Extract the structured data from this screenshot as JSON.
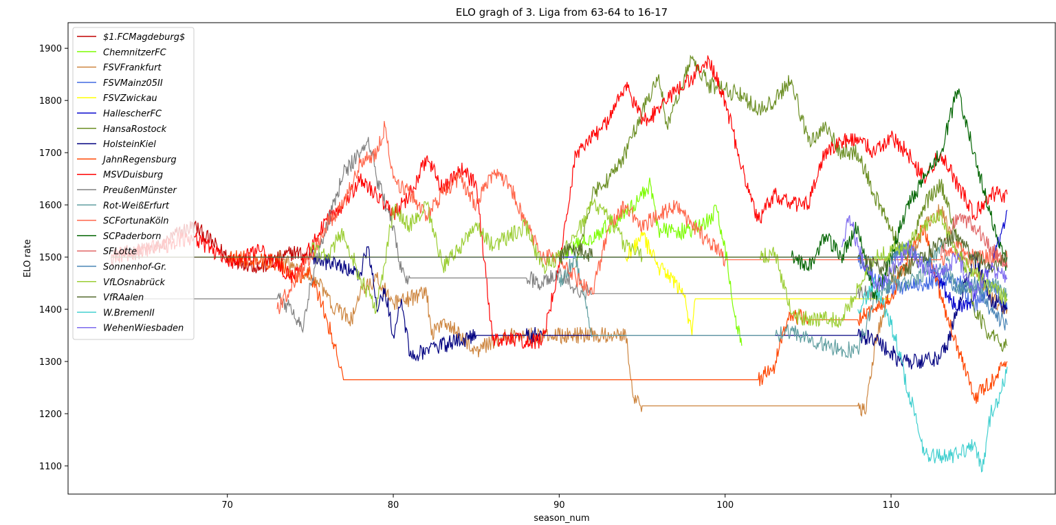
{
  "chart_data": {
    "type": "line",
    "title": "ELO gragh of 3. Liga from 63-64 to 16-17",
    "xlabel": "season_num",
    "ylabel": "ELO rate",
    "xlim": [
      60.4,
      119.9
    ],
    "ylim": [
      1046,
      1949
    ],
    "xticks": [
      70,
      80,
      90,
      100,
      110
    ],
    "yticks": [
      1100,
      1200,
      1300,
      1400,
      1500,
      1600,
      1700,
      1800,
      1900
    ],
    "grid": false,
    "legend_position": "top-left",
    "series": [
      {
        "name": "1. FCMagdeburg",
        "label": "$1.FCMagdeburg$",
        "color": "#c00000",
        "x": [
          63,
          66,
          67,
          68,
          70,
          72,
          74,
          75
        ],
        "y": [
          1500,
          1520,
          1545,
          1560,
          1500,
          1480,
          1510,
          1500
        ]
      },
      {
        "name": "ChemnitzerFC",
        "label": "ChemnitzerFC",
        "color": "#7cfc00",
        "x": [
          90,
          93,
          94.5,
          95.5,
          96,
          97,
          98,
          99,
          99.5,
          100,
          100.5,
          101
        ],
        "y": [
          1500,
          1560,
          1600,
          1640,
          1550,
          1550,
          1550,
          1570,
          1590,
          1520,
          1400,
          1330
        ]
      },
      {
        "name": "FSVFrankfurt",
        "label": "FSVFrankfurt",
        "color": "#cd853f",
        "x": [
          73,
          74.5,
          75.5,
          76.5,
          77.5,
          78,
          79,
          80,
          81,
          82,
          82.3,
          83,
          84,
          85,
          86,
          87,
          88,
          89,
          90,
          91,
          92,
          93,
          94,
          94.5,
          95,
          100,
          105,
          108,
          108.5,
          109,
          110,
          111,
          112,
          113,
          114,
          115,
          116,
          117
        ],
        "y": [
          1500,
          1470,
          1450,
          1400,
          1380,
          1430,
          1460,
          1410,
          1420,
          1435,
          1350,
          1380,
          1350,
          1320,
          1340,
          1350,
          1350,
          1350,
          1350,
          1350,
          1350,
          1350,
          1355,
          1230,
          1215,
          1215,
          1215,
          1215,
          1205,
          1330,
          1450,
          1480,
          1560,
          1590,
          1510,
          1480,
          1420,
          1400
        ]
      },
      {
        "name": "FSVMainz05II",
        "label": "FSVMainz05II",
        "color": "#4169e1",
        "x": [
          63,
          90,
          100,
          108,
          109,
          110,
          112,
          114,
          115,
          116,
          117
        ],
        "y": [
          1500,
          1500,
          1500,
          1500,
          1460,
          1440,
          1450,
          1460,
          1400,
          1450,
          1400
        ]
      },
      {
        "name": "FSVZwickau",
        "label": "FSVZwickau",
        "color": "#ffff00",
        "x": [
          94,
          95,
          96,
          97,
          97.5,
          98,
          98.2,
          100,
          105,
          110
        ],
        "y": [
          1500,
          1540,
          1480,
          1450,
          1430,
          1350,
          1420,
          1420,
          1420,
          1420
        ]
      },
      {
        "name": "HallescherFC",
        "label": "HallescherFC",
        "color": "#0000cd",
        "x": [
          63,
          90,
          92,
          94,
          100,
          108,
          110,
          112,
          113,
          114,
          115,
          116,
          117
        ],
        "y": [
          1500,
          1500,
          1500,
          1500,
          1500,
          1500,
          1500,
          1500,
          1450,
          1400,
          1420,
          1480,
          1590
        ]
      },
      {
        "name": "HansaRostock",
        "label": "HansaRostock",
        "color": "#6b8e23",
        "x": [
          91,
          92,
          93,
          94,
          95,
          96,
          96.5,
          97,
          98,
          99,
          100,
          101,
          102,
          103,
          104,
          105,
          106,
          107,
          108,
          109,
          110,
          111,
          112,
          113,
          114,
          115,
          116,
          117
        ],
        "y": [
          1480,
          1620,
          1650,
          1700,
          1780,
          1850,
          1750,
          1800,
          1880,
          1830,
          1820,
          1810,
          1780,
          1800,
          1840,
          1720,
          1750,
          1700,
          1700,
          1620,
          1550,
          1500,
          1600,
          1640,
          1540,
          1400,
          1350,
          1330
        ]
      },
      {
        "name": "HolsteinKiel",
        "label": "HolsteinKiel",
        "color": "#000080",
        "x": [
          63,
          75,
          77,
          78,
          78.5,
          79,
          79.5,
          80,
          80.5,
          81,
          85,
          88,
          89,
          95,
          100,
          105,
          108,
          109,
          110,
          110.5,
          111,
          112,
          113,
          113.5,
          114,
          115,
          116,
          117
        ],
        "y": [
          1500,
          1500,
          1480,
          1470,
          1520,
          1400,
          1440,
          1350,
          1420,
          1310,
          1350,
          1350,
          1350,
          1350,
          1350,
          1350,
          1350,
          1340,
          1320,
          1300,
          1300,
          1300,
          1310,
          1340,
          1400,
          1500,
          1420,
          1400
        ]
      },
      {
        "name": "JahnRegensburg",
        "label": "JahnRegensburg",
        "color": "#ff4500",
        "x": [
          63,
          70,
          73,
          74,
          75,
          76,
          76.5,
          77,
          80,
          90,
          100,
          102,
          103,
          103.5,
          104,
          105,
          108,
          109,
          110,
          111,
          112,
          113,
          114,
          115,
          116,
          117
        ],
        "y": [
          1500,
          1500,
          1490,
          1460,
          1470,
          1380,
          1330,
          1265,
          1265,
          1265,
          1265,
          1265,
          1290,
          1360,
          1390,
          1380,
          1380,
          1400,
          1420,
          1500,
          1560,
          1420,
          1330,
          1230,
          1260,
          1300
        ]
      },
      {
        "name": "MSVDuisburg",
        "label": "MSVDuisburg",
        "color": "#ff0000",
        "x": [
          63,
          66,
          68,
          70,
          72,
          74,
          75,
          76,
          77,
          78,
          79,
          80,
          81,
          82,
          83,
          84,
          85,
          86,
          87,
          88,
          89,
          90,
          91,
          92,
          93,
          94,
          95,
          96,
          97,
          98,
          99,
          100,
          101,
          102,
          103,
          104,
          105,
          106,
          107,
          108,
          109,
          110,
          111,
          112,
          113,
          114,
          115,
          116,
          117
        ],
        "y": [
          1500,
          1520,
          1540,
          1490,
          1510,
          1460,
          1520,
          1570,
          1600,
          1650,
          1620,
          1580,
          1620,
          1690,
          1630,
          1670,
          1640,
          1340,
          1340,
          1340,
          1340,
          1480,
          1700,
          1730,
          1760,
          1830,
          1760,
          1780,
          1820,
          1840,
          1880,
          1800,
          1670,
          1570,
          1620,
          1600,
          1600,
          1700,
          1720,
          1730,
          1700,
          1730,
          1700,
          1650,
          1700,
          1640,
          1580,
          1620,
          1620
        ]
      },
      {
        "name": "PreußenMünster",
        "label": "PreußenMünster",
        "color": "#808080",
        "x": [
          63,
          73,
          74,
          74.5,
          75,
          76,
          77,
          78,
          78.5,
          79,
          80,
          80.5,
          81,
          85,
          88,
          89,
          90,
          91,
          92,
          95,
          100,
          105,
          108,
          109
        ],
        "y": [
          1420,
          1420,
          1400,
          1360,
          1450,
          1560,
          1660,
          1700,
          1730,
          1650,
          1560,
          1470,
          1460,
          1460,
          1460,
          1450,
          1470,
          1440,
          1430,
          1430,
          1430,
          1430,
          1430,
          1430
        ]
      },
      {
        "name": "Rot-WeißErfurt",
        "label": "Rot-WeißErfurt",
        "color": "#5f9ea0",
        "x": [
          90,
          91,
          92,
          95,
          100,
          103,
          104,
          106,
          108,
          109,
          110,
          111,
          112,
          113,
          114,
          115,
          116,
          117
        ],
        "y": [
          1450,
          1500,
          1350,
          1350,
          1350,
          1350,
          1360,
          1330,
          1320,
          1420,
          1450,
          1450,
          1470,
          1520,
          1440,
          1440,
          1450,
          1430
        ]
      },
      {
        "name": "SCFortunaKöln",
        "label": "SCFortunaKöln",
        "color": "#ff6347",
        "x": [
          73,
          74,
          75,
          76,
          77,
          78,
          79,
          79.5,
          80,
          81,
          82,
          83,
          84,
          85,
          86,
          87,
          88,
          89,
          90,
          91,
          92,
          93,
          94,
          95,
          96,
          97,
          98,
          99,
          100,
          105,
          110,
          113,
          114,
          115,
          116,
          117
        ],
        "y": [
          1400,
          1450,
          1500,
          1560,
          1600,
          1680,
          1700,
          1750,
          1650,
          1620,
          1580,
          1620,
          1650,
          1600,
          1660,
          1640,
          1560,
          1500,
          1500,
          1460,
          1430,
          1560,
          1600,
          1560,
          1580,
          1600,
          1560,
          1530,
          1495,
          1495,
          1495,
          1495,
          1520,
          1500,
          1500,
          1500
        ]
      },
      {
        "name": "SCPaderborn",
        "label": "SCPaderborn",
        "color": "#006400",
        "x": [
          91,
          93,
          95,
          100,
          104,
          105,
          106,
          107,
          108,
          109,
          110,
          111,
          112,
          113,
          113.5,
          114,
          115,
          116,
          117
        ],
        "y": [
          1500,
          1500,
          1500,
          1500,
          1500,
          1480,
          1540,
          1500,
          1560,
          1420,
          1500,
          1600,
          1650,
          1700,
          1760,
          1820,
          1700,
          1580,
          1480
        ]
      },
      {
        "name": "SFLotte",
        "label": "SFLotte",
        "color": "#e06666",
        "x": [
          113,
          114,
          115,
          116,
          117
        ],
        "y": [
          1500,
          1580,
          1560,
          1520,
          1480
        ]
      },
      {
        "name": "Sonnenhof-Gr.",
        "label": "Sonnenhof-Gr.",
        "color": "#4682b4",
        "x": [
          100,
          102,
          104,
          106,
          108,
          110,
          111,
          112,
          113,
          114,
          115,
          116,
          117
        ],
        "y": [
          1500,
          1500,
          1500,
          1500,
          1500,
          1500,
          1520,
          1490,
          1480,
          1440,
          1450,
          1400,
          1370
        ]
      },
      {
        "name": "VfLOsnabrück",
        "label": "VfLOsnabrück",
        "color": "#9acd32",
        "x": [
          75,
          76,
          77,
          78,
          79,
          80,
          81,
          82,
          83,
          84,
          85,
          86,
          87,
          88,
          89,
          90,
          91,
          92,
          93,
          94,
          95,
          100,
          102,
          103,
          104,
          105,
          106,
          107,
          108,
          109,
          110,
          111,
          112,
          113,
          114,
          115,
          116,
          117
        ],
        "y": [
          1520,
          1500,
          1550,
          1460,
          1400,
          1590,
          1560,
          1600,
          1480,
          1520,
          1560,
          1520,
          1540,
          1560,
          1480,
          1500,
          1540,
          1600,
          1580,
          1520,
          1500,
          1500,
          1500,
          1510,
          1390,
          1380,
          1380,
          1380,
          1440,
          1500,
          1510,
          1520,
          1560,
          1580,
          1500,
          1470,
          1440,
          1420
        ]
      },
      {
        "name": "VfRAalen",
        "label": "VfRAalen",
        "color": "#556b2f",
        "x": [
          63,
          73,
          75,
          78,
          80,
          85,
          90,
          91,
          92,
          95,
          100,
          105,
          108,
          110,
          111,
          112,
          113,
          114,
          115,
          116,
          117
        ],
        "y": [
          1500,
          1500,
          1500,
          1500,
          1500,
          1500,
          1500,
          1520,
          1500,
          1500,
          1500,
          1500,
          1500,
          1470,
          1480,
          1500,
          1530,
          1540,
          1500,
          1480,
          1500
        ]
      },
      {
        "name": "W. BremenII",
        "label": "W.BremenII",
        "color": "#40cfcf",
        "x": [
          108,
          109,
          110,
          110.5,
          111,
          111.5,
          112,
          113,
          114,
          115,
          115.5,
          116,
          116.5,
          117
        ],
        "y": [
          1400,
          1450,
          1370,
          1320,
          1240,
          1200,
          1120,
          1120,
          1120,
          1140,
          1090,
          1200,
          1220,
          1290
        ]
      },
      {
        "name": "WehenWiesbaden",
        "label": "WehenWiesbaden",
        "color": "#7b68ee",
        "x": [
          107,
          107.5,
          108,
          108.5,
          109,
          110,
          111,
          112,
          113,
          114,
          115,
          116,
          117
        ],
        "y": [
          1520,
          1580,
          1520,
          1480,
          1440,
          1470,
          1520,
          1480,
          1470,
          1500,
          1430,
          1480,
          1460
        ]
      }
    ]
  }
}
